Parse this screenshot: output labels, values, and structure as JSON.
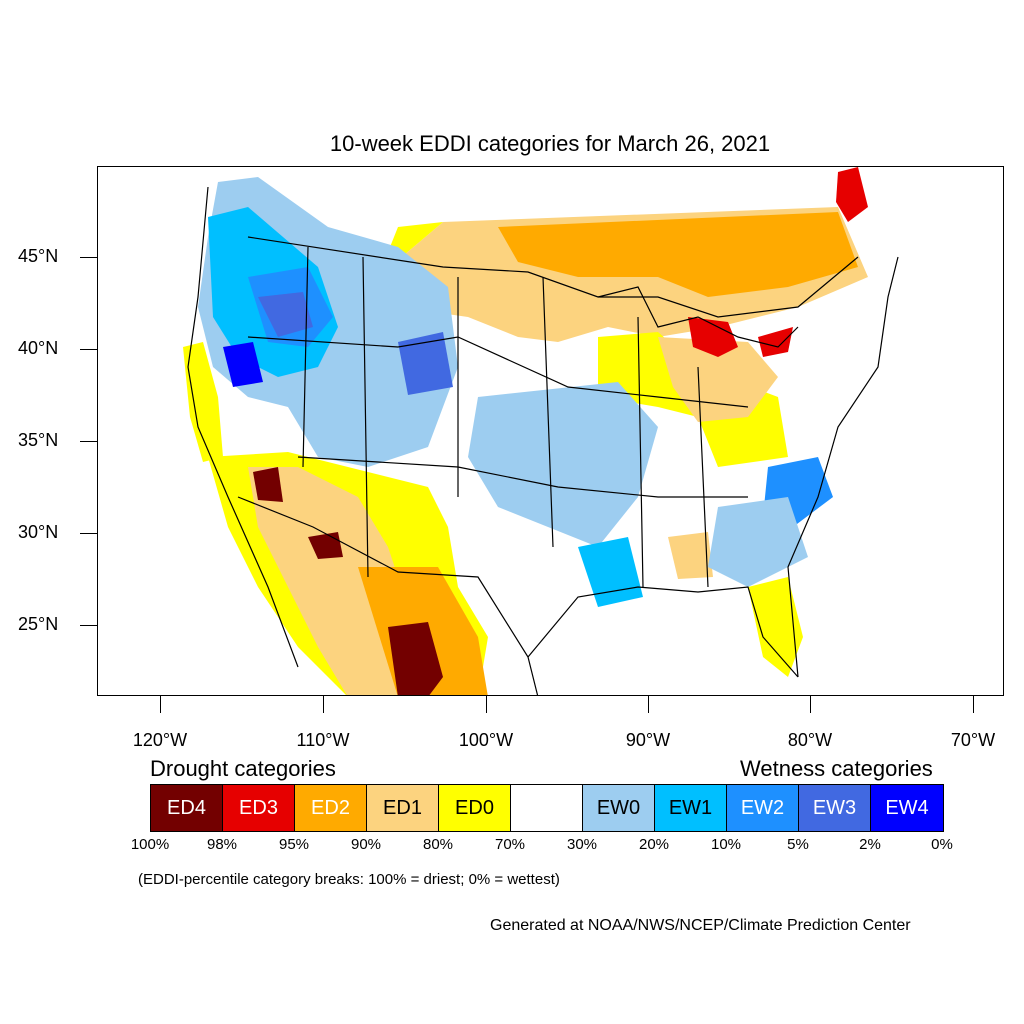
{
  "title": "10-week EDDI categories for March 26, 2021",
  "axes": {
    "lat_labels": [
      "45°N",
      "40°N",
      "35°N",
      "30°N",
      "25°N"
    ],
    "lon_labels": [
      "120°W",
      "110°W",
      "100°W",
      "90°W",
      "80°W",
      "70°W"
    ]
  },
  "legend": {
    "drought_heading": "Drought categories",
    "wetness_heading": "Wetness categories",
    "categories": [
      {
        "label": "ED4",
        "color": "#730000",
        "text_color": "#ffffff"
      },
      {
        "label": "ED3",
        "color": "#e60000",
        "text_color": "#ffffff"
      },
      {
        "label": "ED2",
        "color": "#ffaa00",
        "text_color": "#ffffff"
      },
      {
        "label": "ED1",
        "color": "#fcd37f",
        "text_color": "#000000"
      },
      {
        "label": "ED0",
        "color": "#ffff00",
        "text_color": "#000000"
      },
      {
        "label": "",
        "color": "#ffffff",
        "text_color": "#000000"
      },
      {
        "label": "EW0",
        "color": "#9dcdf0",
        "text_color": "#000000"
      },
      {
        "label": "EW1",
        "color": "#00bfff",
        "text_color": "#000000"
      },
      {
        "label": "EW2",
        "color": "#1e90ff",
        "text_color": "#ffffff"
      },
      {
        "label": "EW3",
        "color": "#4169e1",
        "text_color": "#ffffff"
      },
      {
        "label": "EW4",
        "color": "#0000ff",
        "text_color": "#ffffff"
      }
    ],
    "breaks": [
      "100%",
      "98%",
      "95%",
      "90%",
      "80%",
      "70%",
      "30%",
      "20%",
      "10%",
      "5%",
      "2%",
      "0%"
    ]
  },
  "note": "(EDDI-percentile category breaks: 100% = driest; 0% = wettest)",
  "credit": "Generated at NOAA/NWS/NCEP/Climate Prediction Center"
}
